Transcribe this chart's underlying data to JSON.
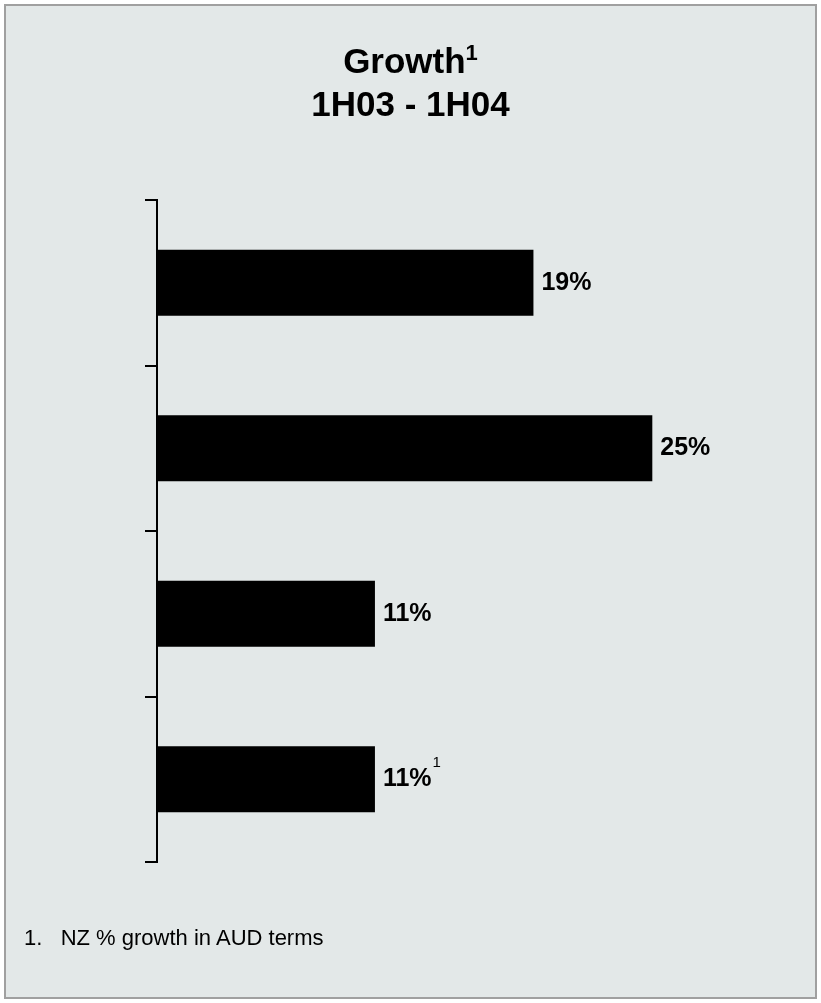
{
  "chart_data": {
    "type": "bar",
    "orientation": "horizontal",
    "title": "Growth$^{1}$",
    "subtitle": "1H03 - 1H04",
    "categories": [
      null,
      null,
      null,
      null
    ],
    "values": [
      19,
      25,
      11,
      11
    ],
    "color": "#000000",
    "value_labels": [
      "19%",
      "25%",
      "11%",
      "11%$^{1}$"
    ],
    "annotations": [
      "1.   NZ % growth in AUD terms"
    ]
  }
}
